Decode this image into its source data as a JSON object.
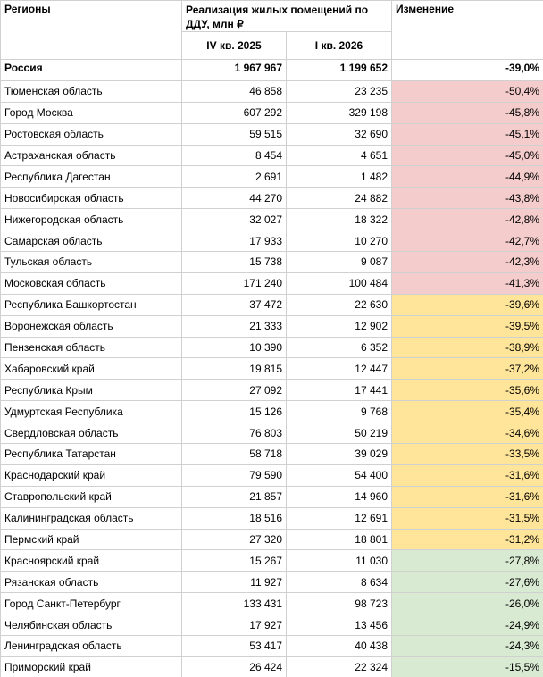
{
  "header": {
    "region": "Регионы",
    "group": "Реализация жилых помещений по ДДУ, млн ₽",
    "change": "Изменение",
    "q1": "IV кв. 2025",
    "q2": "I кв. 2026"
  },
  "total": {
    "region": "Россия",
    "q1": "1 967 967",
    "q2": "1 199 652",
    "change": "-39,0%"
  },
  "rows": [
    {
      "region": "Тюменская область",
      "q1": "46 858",
      "q2": "23 235",
      "change": "-50,4%",
      "color": "#f4cccc"
    },
    {
      "region": "Город Москва",
      "q1": "607 292",
      "q2": "329 198",
      "change": "-45,8%",
      "color": "#f4cccc"
    },
    {
      "region": "Ростовская область",
      "q1": "59 515",
      "q2": "32 690",
      "change": "-45,1%",
      "color": "#f4cccc"
    },
    {
      "region": "Астраханская область",
      "q1": "8 454",
      "q2": "4 651",
      "change": "-45,0%",
      "color": "#f4cccc"
    },
    {
      "region": "Республика Дагестан",
      "q1": "2 691",
      "q2": "1 482",
      "change": "-44,9%",
      "color": "#f4cccc"
    },
    {
      "region": "Новосибирская область",
      "q1": "44 270",
      "q2": "24 882",
      "change": "-43,8%",
      "color": "#f4cccc"
    },
    {
      "region": "Нижегородская область",
      "q1": "32 027",
      "q2": "18 322",
      "change": "-42,8%",
      "color": "#f4cccc"
    },
    {
      "region": "Самарская область",
      "q1": "17 933",
      "q2": "10 270",
      "change": "-42,7%",
      "color": "#f4cccc"
    },
    {
      "region": "Тульская область",
      "q1": "15 738",
      "q2": "9 087",
      "change": "-42,3%",
      "color": "#f4cccc"
    },
    {
      "region": "Московская область",
      "q1": "171 240",
      "q2": "100 484",
      "change": "-41,3%",
      "color": "#f4cccc"
    },
    {
      "region": "Республика Башкортостан",
      "q1": "37 472",
      "q2": "22 630",
      "change": "-39,6%",
      "color": "#ffe599"
    },
    {
      "region": "Воронежская область",
      "q1": "21 333",
      "q2": "12 902",
      "change": "-39,5%",
      "color": "#ffe599"
    },
    {
      "region": "Пензенская область",
      "q1": "10 390",
      "q2": "6 352",
      "change": "-38,9%",
      "color": "#ffe599"
    },
    {
      "region": "Хабаровский край",
      "q1": "19 815",
      "q2": "12 447",
      "change": "-37,2%",
      "color": "#ffe599"
    },
    {
      "region": "Республика Крым",
      "q1": "27 092",
      "q2": "17 441",
      "change": "-35,6%",
      "color": "#ffe599"
    },
    {
      "region": "Удмуртская Республика",
      "q1": "15 126",
      "q2": "9 768",
      "change": "-35,4%",
      "color": "#ffe599"
    },
    {
      "region": "Свердловская область",
      "q1": "76 803",
      "q2": "50 219",
      "change": "-34,6%",
      "color": "#ffe599"
    },
    {
      "region": "Республика Татарстан",
      "q1": "58 718",
      "q2": "39 029",
      "change": "-33,5%",
      "color": "#ffe599"
    },
    {
      "region": "Краснодарский край",
      "q1": "79 590",
      "q2": "54 400",
      "change": "-31,6%",
      "color": "#ffe599"
    },
    {
      "region": "Ставропольский край",
      "q1": "21 857",
      "q2": "14 960",
      "change": "-31,6%",
      "color": "#ffe599"
    },
    {
      "region": "Калининградская область",
      "q1": "18 516",
      "q2": "12 691",
      "change": "-31,5%",
      "color": "#ffe599"
    },
    {
      "region": "Пермский край",
      "q1": "27 320",
      "q2": "18 801",
      "change": "-31,2%",
      "color": "#ffe599"
    },
    {
      "region": "Красноярский край",
      "q1": "15 267",
      "q2": "11 030",
      "change": "-27,8%",
      "color": "#d9ead3"
    },
    {
      "region": "Рязанская область",
      "q1": "11 927",
      "q2": "8 634",
      "change": "-27,6%",
      "color": "#d9ead3"
    },
    {
      "region": "Город Санкт-Петербург",
      "q1": "133 431",
      "q2": "98 723",
      "change": "-26,0%",
      "color": "#d9ead3"
    },
    {
      "region": "Челябинская область",
      "q1": "17 927",
      "q2": "13 456",
      "change": "-24,9%",
      "color": "#d9ead3"
    },
    {
      "region": "Ленинградская область",
      "q1": "53 417",
      "q2": "40 438",
      "change": "-24,3%",
      "color": "#d9ead3"
    },
    {
      "region": "Приморский край",
      "q1": "26 424",
      "q2": "22 324",
      "change": "-15,5%",
      "color": "#d9ead3"
    }
  ]
}
